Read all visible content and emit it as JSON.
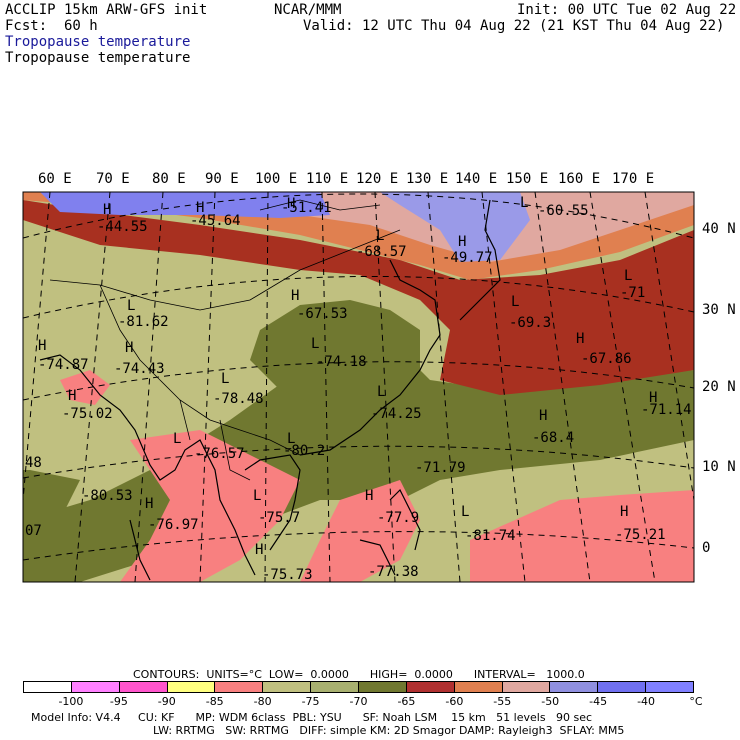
{
  "header": {
    "model": "ACCLIP 15km ARW-GFS init",
    "center": "NCAR/MMM",
    "init": "Init: 00 UTC Tue 02 Aug 22",
    "fcst_label": "Fcst:",
    "fcst_value": "60 h",
    "valid": "Valid: 12 UTC Thu 04 Aug 22 (21 KST Thu 04 Aug 22)",
    "field_filled": "Tropopause temperature",
    "field_contour": "Tropopause temperature"
  },
  "map": {
    "lon_labels": [
      "60 E",
      "70 E",
      "80 E",
      "90 E",
      "100 E",
      "110 E",
      "120 E",
      "130 E",
      "140 E",
      "150 E",
      "160 E",
      "170 E"
    ],
    "lat_labels": [
      "40 N",
      "30 N",
      "20 N",
      "10 N",
      "0"
    ],
    "extremes": [
      {
        "type": "H",
        "value": "-44.55"
      },
      {
        "type": "H",
        "value": "-45.64"
      },
      {
        "type": "H",
        "value": "-51.41"
      },
      {
        "type": "L",
        "value": "-60.55"
      },
      {
        "type": "L",
        "value": "-68.57"
      },
      {
        "type": "H",
        "value": "-49.77"
      },
      {
        "type": "L",
        "value": "-71"
      },
      {
        "type": "L",
        "value": "-81.62"
      },
      {
        "type": "H",
        "value": "-67.53"
      },
      {
        "type": "L",
        "value": "-69.3"
      },
      {
        "type": "H",
        "value": "-74.87"
      },
      {
        "type": "H",
        "value": "-74.43"
      },
      {
        "type": "L",
        "value": "-74.18"
      },
      {
        "type": "H",
        "value": "-67.86"
      },
      {
        "type": "H",
        "value": "-75.02"
      },
      {
        "type": "L",
        "value": "-78.48"
      },
      {
        "type": "L",
        "value": "-74.25"
      },
      {
        "type": "H",
        "value": "-71.14"
      },
      {
        "type": "L",
        "value": "-76.57"
      },
      {
        "type": "L",
        "value": "-80.2"
      },
      {
        "type": "H",
        "value": "-68.4"
      },
      {
        "type": "",
        "value": "-71.79"
      },
      {
        "type": "",
        "value": "48"
      },
      {
        "type": "",
        "value": "-80.53"
      },
      {
        "type": "H",
        "value": "-76.97"
      },
      {
        "type": "L",
        "value": "-75.7"
      },
      {
        "type": "H",
        "value": "-77.9"
      },
      {
        "type": "L",
        "value": "-81.74"
      },
      {
        "type": "H",
        "value": "-75.21"
      },
      {
        "type": "",
        "value": "07"
      },
      {
        "type": "H",
        "value": "-75.73"
      },
      {
        "type": "",
        "value": "-77.38"
      }
    ]
  },
  "colorbar": {
    "contours_line": "CONTOURS:  UNITS=°C  LOW=  0.0000      HIGH=  0.0000      INTERVAL=   1000.0",
    "ticks": [
      "-100",
      "-95",
      "-90",
      "-85",
      "-80",
      "-75",
      "-70",
      "-65",
      "-60",
      "-55",
      "-50",
      "-45",
      "-40"
    ],
    "unit": "°C",
    "colors": [
      "#ffffff",
      "#ff80ff",
      "#ff55cc",
      "#ffff80",
      "#f88080",
      "#c0c080",
      "#a8b070",
      "#707830",
      "#b03030",
      "#e08050",
      "#e0a8a0",
      "#9090e0",
      "#7070f0",
      "#8080ff"
    ]
  },
  "footer": {
    "line1": "Model Info: V4.4     CU: KF      MP: WDM 6class  PBL: YSU      SF: Noah LSM    15 km   51 levels   90 sec",
    "line2": "LW: RRTMG   SW: RRTMG   DIFF: simple KM: 2D Smagor DAMP: Rayleigh3  SFLAY: MM5"
  }
}
